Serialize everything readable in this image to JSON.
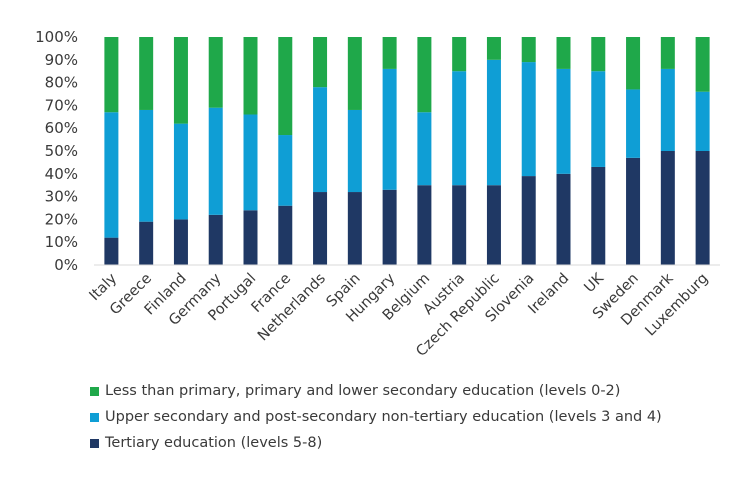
{
  "chart_data": {
    "type": "bar",
    "stacked": true,
    "categories": [
      "Italy",
      "Greece",
      "Finland",
      "Germany",
      "Portugal",
      "France",
      "Netherlands",
      "Spain",
      "Hungary",
      "Belgium",
      "Austria",
      "Czech Republic",
      "Slovenia",
      "Ireland",
      "UK",
      "Sweden",
      "Denmark",
      "Luxemburg"
    ],
    "series": [
      {
        "name": "Tertiary education (levels 5-8)",
        "color": "#1f3864",
        "values": [
          12,
          19,
          20,
          22,
          24,
          26,
          32,
          32,
          33,
          35,
          35,
          35,
          39,
          40,
          43,
          47,
          50,
          50
        ]
      },
      {
        "name": "Upper secondary and post-secondary non-tertiary education (levels 3 and 4)",
        "color": "#0f9ed5",
        "values": [
          55,
          49,
          42,
          47,
          42,
          31,
          46,
          36,
          53,
          32,
          50,
          55,
          50,
          46,
          42,
          30,
          36,
          26
        ]
      },
      {
        "name": "Less than primary, primary and lower secondary education (levels 0-2)",
        "color": "#1fa84a",
        "values": [
          33,
          32,
          38,
          31,
          34,
          43,
          22,
          32,
          14,
          33,
          15,
          10,
          11,
          14,
          15,
          23,
          14,
          24
        ]
      }
    ],
    "y_ticks": [
      "0%",
      "10%",
      "20%",
      "30%",
      "40%",
      "50%",
      "60%",
      "70%",
      "80%",
      "90%",
      "100%"
    ],
    "ylim": [
      0,
      100
    ],
    "title": "",
    "xlabel": "",
    "ylabel": "",
    "grid": false,
    "legend_position": "bottom-left",
    "legend_order": [
      2,
      1,
      0
    ]
  }
}
